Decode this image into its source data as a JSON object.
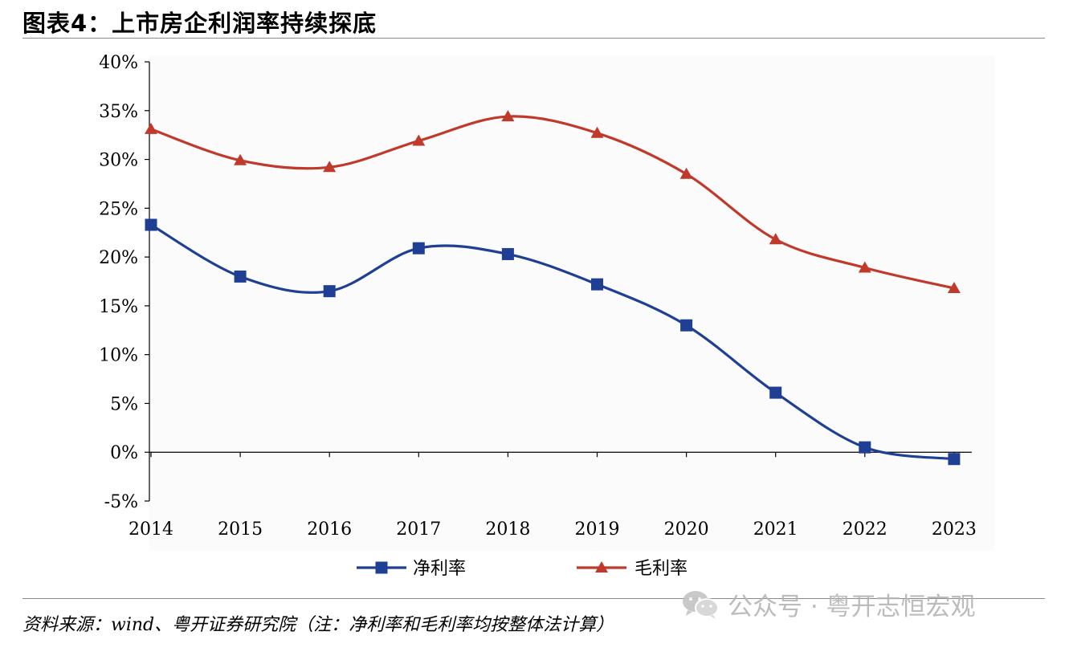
{
  "figure_title": "图表4：上市房企利润率持续探底",
  "source_note": "资料来源：wind、粤开证券研究院（注：净利率和毛利率均按整体法计算）",
  "watermark": {
    "text": "公众号 · 粤开志恒宏观",
    "icon": "wechat-icon"
  },
  "chart_data": {
    "type": "line",
    "title": "",
    "xlabel": "",
    "ylabel": "",
    "categories": [
      "2014",
      "2015",
      "2016",
      "2017",
      "2018",
      "2019",
      "2020",
      "2021",
      "2022",
      "2023"
    ],
    "ylim": [
      -5,
      40
    ],
    "yticks": [
      -5,
      0,
      5,
      10,
      15,
      20,
      25,
      30,
      35,
      40
    ],
    "ytick_labels": [
      "-5%",
      "0%",
      "5%",
      "10%",
      "15%",
      "20%",
      "25%",
      "30%",
      "35%",
      "40%"
    ],
    "grid": false,
    "legend_position": "bottom",
    "series": [
      {
        "name": "净利率",
        "color": "#1f3f95",
        "marker": "square",
        "values": [
          23.3,
          18.0,
          16.5,
          20.9,
          20.3,
          17.2,
          13.0,
          6.1,
          0.5,
          -0.7
        ]
      },
      {
        "name": "毛利率",
        "color": "#c0392b",
        "marker": "triangle",
        "values": [
          33.1,
          29.9,
          29.2,
          31.9,
          34.4,
          32.7,
          28.5,
          21.8,
          18.9,
          16.8
        ]
      }
    ]
  }
}
